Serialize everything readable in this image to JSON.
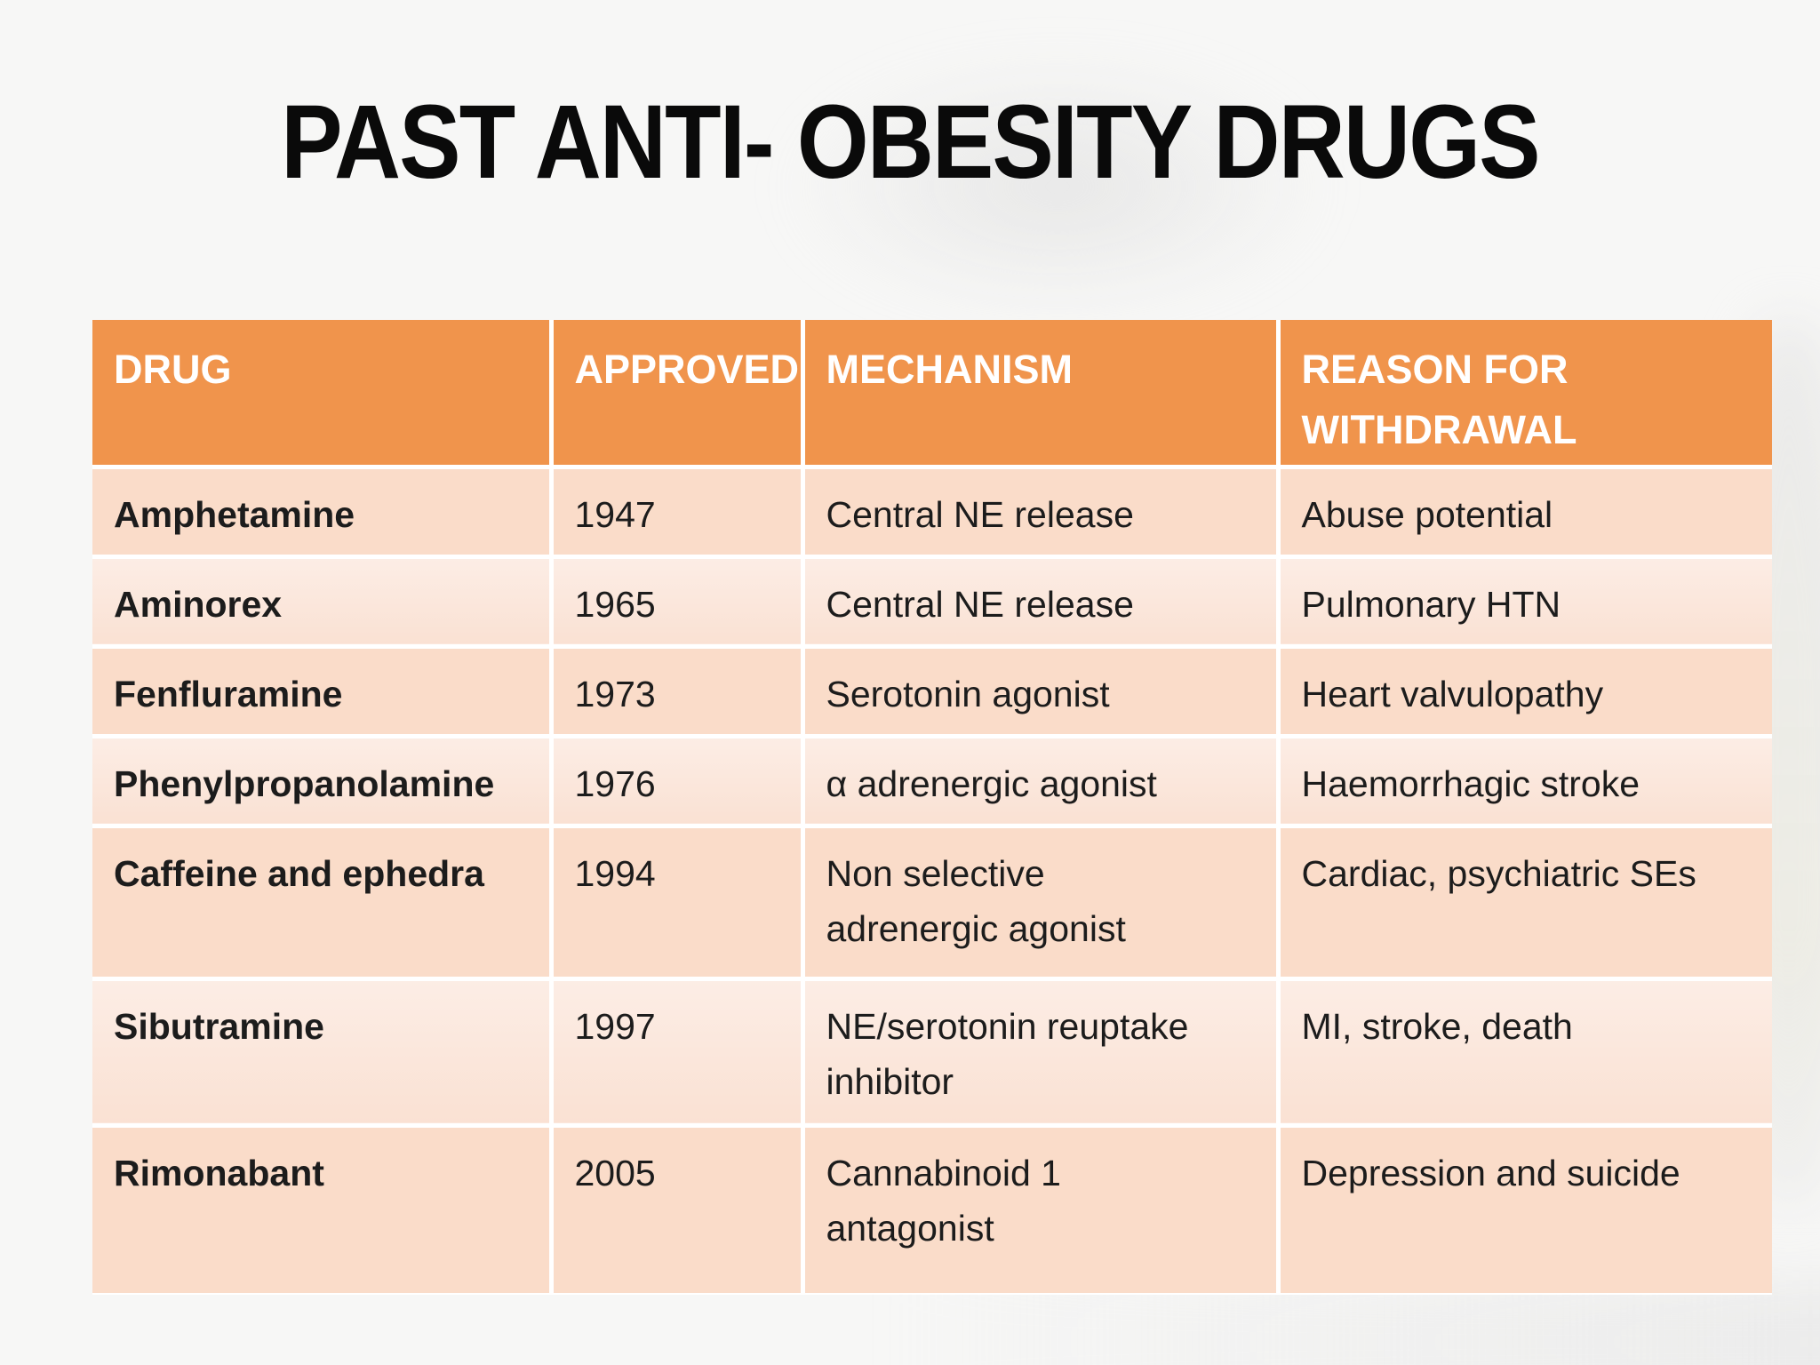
{
  "slide": {
    "title": "PAST ANTI- OBESITY DRUGS"
  },
  "table": {
    "columns": [
      "DRUG",
      "APPROVED",
      "MECHANISM",
      "REASON FOR WITHDRAWAL"
    ],
    "rows": [
      {
        "drug": "Amphetamine",
        "approved": "1947",
        "mechanism": "Central NE release",
        "reason": "Abuse potential"
      },
      {
        "drug": "Aminorex",
        "approved": "1965",
        "mechanism": "Central NE release",
        "reason": "Pulmonary HTN"
      },
      {
        "drug": "Fenfluramine",
        "approved": "1973",
        "mechanism": "Serotonin agonist",
        "reason": "Heart valvulopathy"
      },
      {
        "drug": "Phenylpropanolamine",
        "approved": "1976",
        "mechanism": "α adrenergic agonist",
        "reason": "Haemorrhagic stroke"
      },
      {
        "drug": "Caffeine and ephedra",
        "approved": "1994",
        "mechanism": "Non selective adrenergic agonist",
        "reason": "Cardiac, psychiatric SEs"
      },
      {
        "drug": "Sibutramine",
        "approved": "1997",
        "mechanism": "NE/serotonin reuptake inhibitor",
        "reason": "MI, stroke, death"
      },
      {
        "drug": "Rimonabant",
        "approved": "2005",
        "mechanism": "Cannabinoid 1 antagonist",
        "reason": "Depression and suicide"
      }
    ]
  },
  "colors": {
    "header_bg": "#F0944C",
    "row_odd_bg": "#FADCC9",
    "row_even_bg": "#FCEDE5",
    "gridline": "#FFFFFF",
    "header_text": "#FFFFFF",
    "body_text": "#1C1C1C",
    "title_text": "#0A0A0A",
    "page_bg": "#F7F7F6"
  }
}
